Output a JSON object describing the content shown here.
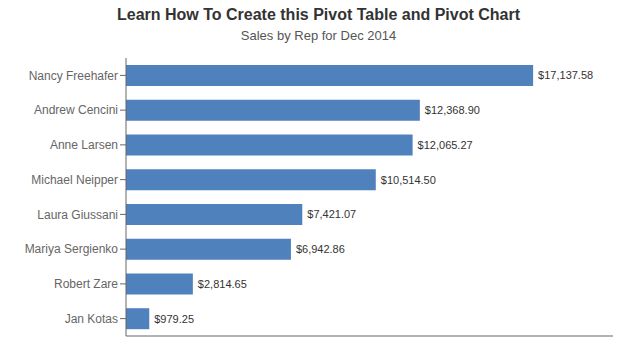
{
  "chart_data": {
    "type": "bar",
    "orientation": "horizontal",
    "title": "Learn How To Create this Pivot Table and Pivot Chart",
    "subtitle": "Sales by Rep for Dec 2014",
    "categories": [
      "Nancy Freehafer",
      "Andrew Cencini",
      "Anne Larsen",
      "Michael Neipper",
      "Laura Giussani",
      "Mariya Sergienko",
      "Robert Zare",
      "Jan Kotas"
    ],
    "values": [
      17137.58,
      12368.9,
      12065.27,
      10514.5,
      7421.07,
      6942.86,
      2814.65,
      979.25
    ],
    "value_labels": [
      "$17,137.58",
      "$12,368.90",
      "$12,065.27",
      "$10,514.50",
      "$7,421.07",
      "$6,942.86",
      "$2,814.65",
      "$979.25"
    ],
    "color": "#4F81BD",
    "xlim": [
      0,
      20500
    ],
    "data_labels": true,
    "tick_labels": "y",
    "grid": false
  }
}
